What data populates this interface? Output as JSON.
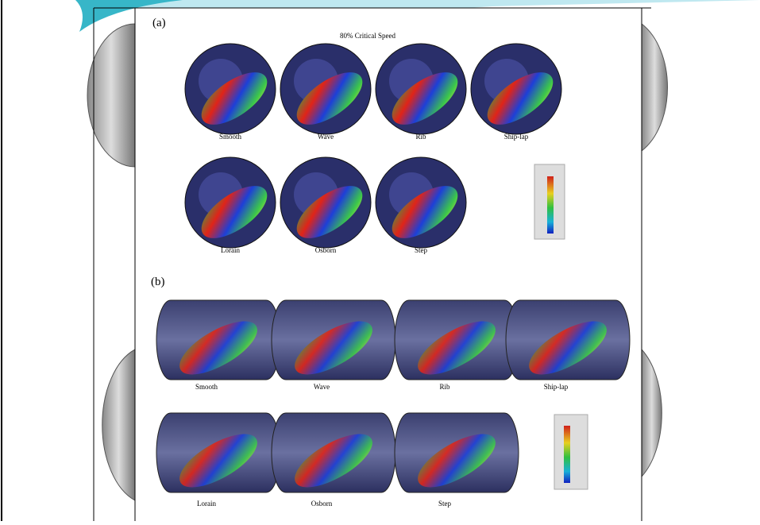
{
  "panel_a": {
    "label": "(a)",
    "title": "80% Critical Speed",
    "items": [
      "Smooth",
      "Wave",
      "Rib",
      "Ship-lap",
      "Lorain",
      "Osborn",
      "Step"
    ]
  },
  "panel_b": {
    "label": "(b)",
    "items": [
      "Smooth",
      "Wave",
      "Rib",
      "Ship-lap",
      "Lorain",
      "Osborn",
      "Step"
    ]
  }
}
